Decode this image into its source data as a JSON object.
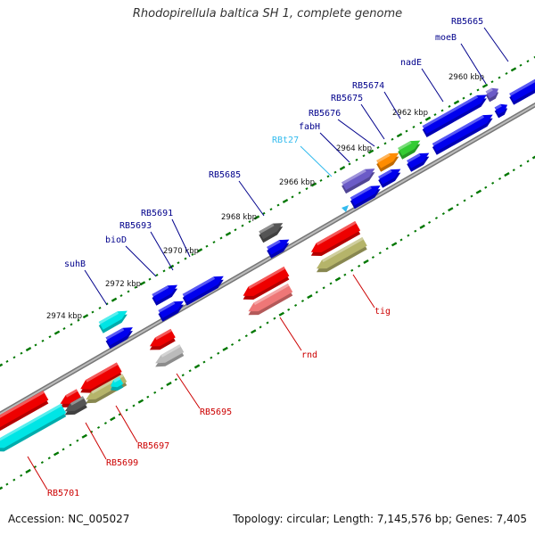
{
  "title": "Rhodopirellula baltica SH 1, complete genome",
  "accession_text": "Accession: NC_005027",
  "topology_text": "Topology: circular; Length: 7,145,576 bp; Genes: 7,405",
  "colors": {
    "backbone": "#888888",
    "blue": "#0000ee",
    "red": "#ee0000",
    "cyan": "#00e5e5",
    "darkgray": "#555555",
    "olive": "#b5b46a",
    "purple": "#6b5bc7",
    "orange": "#ff8c00",
    "green": "#33cc33",
    "pink": "#ee7777",
    "lightgray": "#bbbbbb",
    "tick": "#007700",
    "label_blue": "#00008b",
    "label_red": "#cc0000",
    "label_rna": "#33bbee"
  },
  "scale_labels": [
    "2960 kbp",
    "2962 kbp",
    "2964 kbp",
    "2966 kbp",
    "2968 kbp",
    "2970 kbp",
    "2972 kbp",
    "2974 kbp"
  ],
  "gene_labels": [
    {
      "text": "RB5665",
      "color": "blue"
    },
    {
      "text": "moeB",
      "color": "blue"
    },
    {
      "text": "nadE",
      "color": "blue"
    },
    {
      "text": "RB5674",
      "color": "blue"
    },
    {
      "text": "RB5675",
      "color": "blue"
    },
    {
      "text": "RB5676",
      "color": "blue"
    },
    {
      "text": "fabH",
      "color": "blue"
    },
    {
      "text": "RBt27",
      "color": "rna"
    },
    {
      "text": "RB5685",
      "color": "blue"
    },
    {
      "text": "RB5691",
      "color": "blue"
    },
    {
      "text": "RB5693",
      "color": "blue"
    },
    {
      "text": "bioD",
      "color": "blue"
    },
    {
      "text": "suhB",
      "color": "blue"
    },
    {
      "text": "tig",
      "color": "red"
    },
    {
      "text": "rnd",
      "color": "red"
    },
    {
      "text": "RB5695",
      "color": "red"
    },
    {
      "text": "RB5697",
      "color": "red"
    },
    {
      "text": "RB5699",
      "color": "red"
    },
    {
      "text": "RB5701",
      "color": "red"
    }
  ]
}
